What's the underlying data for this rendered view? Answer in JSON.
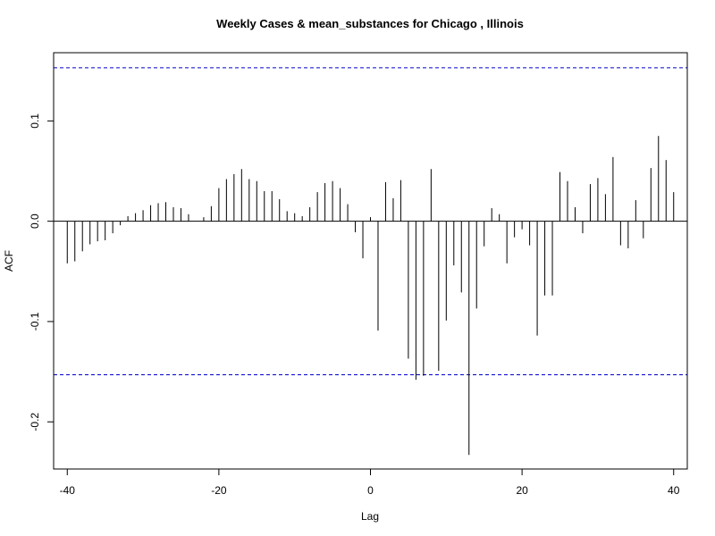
{
  "chart_data": {
    "type": "bar",
    "title": "Weekly Cases & mean_substances for Chicago , Illinois",
    "xlabel": "Lag",
    "ylabel": "ACF",
    "xlim": [
      -41.8,
      41.8
    ],
    "ylim": [
      -0.247,
      0.168
    ],
    "xticks": [
      -40,
      -20,
      0,
      20,
      40
    ],
    "xtick_labels": [
      "-40",
      "-20",
      "0",
      "20",
      "40"
    ],
    "yticks": [
      -0.2,
      -0.1,
      0.0,
      0.1
    ],
    "ytick_labels": [
      "-0.2",
      "-0.1",
      "0.0",
      "0.1"
    ],
    "confidence_bounds": [
      0.153,
      -0.153
    ],
    "confidence_color": "#0000cc",
    "grid": false,
    "x": [
      -40,
      -39,
      -38,
      -37,
      -36,
      -35,
      -34,
      -33,
      -32,
      -31,
      -30,
      -29,
      -28,
      -27,
      -26,
      -25,
      -24,
      -23,
      -22,
      -21,
      -20,
      -19,
      -18,
      -17,
      -16,
      -15,
      -14,
      -13,
      -12,
      -11,
      -10,
      -9,
      -8,
      -7,
      -6,
      -5,
      -4,
      -3,
      -2,
      -1,
      0,
      1,
      2,
      3,
      4,
      5,
      6,
      7,
      8,
      9,
      10,
      11,
      12,
      13,
      14,
      15,
      16,
      17,
      18,
      19,
      20,
      21,
      22,
      23,
      24,
      25,
      26,
      27,
      28,
      29,
      30,
      31,
      32,
      33,
      34,
      35,
      36,
      37,
      38,
      39,
      40
    ],
    "values": [
      -0.042,
      -0.04,
      -0.03,
      -0.023,
      -0.02,
      -0.019,
      -0.012,
      -0.004,
      0.005,
      0.008,
      0.011,
      0.016,
      0.018,
      0.019,
      0.014,
      0.013,
      0.007,
      0.0,
      0.004,
      0.015,
      0.033,
      0.042,
      0.047,
      0.052,
      0.042,
      0.04,
      0.03,
      0.03,
      0.022,
      0.01,
      0.008,
      0.005,
      0.014,
      0.029,
      0.038,
      0.04,
      0.033,
      0.017,
      -0.011,
      -0.037,
      0.004,
      -0.109,
      0.039,
      0.023,
      0.041,
      -0.137,
      -0.158,
      -0.154,
      0.052,
      -0.149,
      -0.099,
      -0.044,
      -0.071,
      -0.233,
      -0.087,
      -0.025,
      0.013,
      0.007,
      -0.042,
      -0.016,
      -0.008,
      -0.024,
      -0.114,
      -0.074,
      -0.074,
      0.049,
      0.04,
      0.014,
      -0.012,
      0.037,
      0.043,
      0.027,
      0.064,
      -0.024,
      -0.027,
      0.021,
      -0.017,
      0.053,
      0.085,
      0.061,
      0.029
    ]
  }
}
